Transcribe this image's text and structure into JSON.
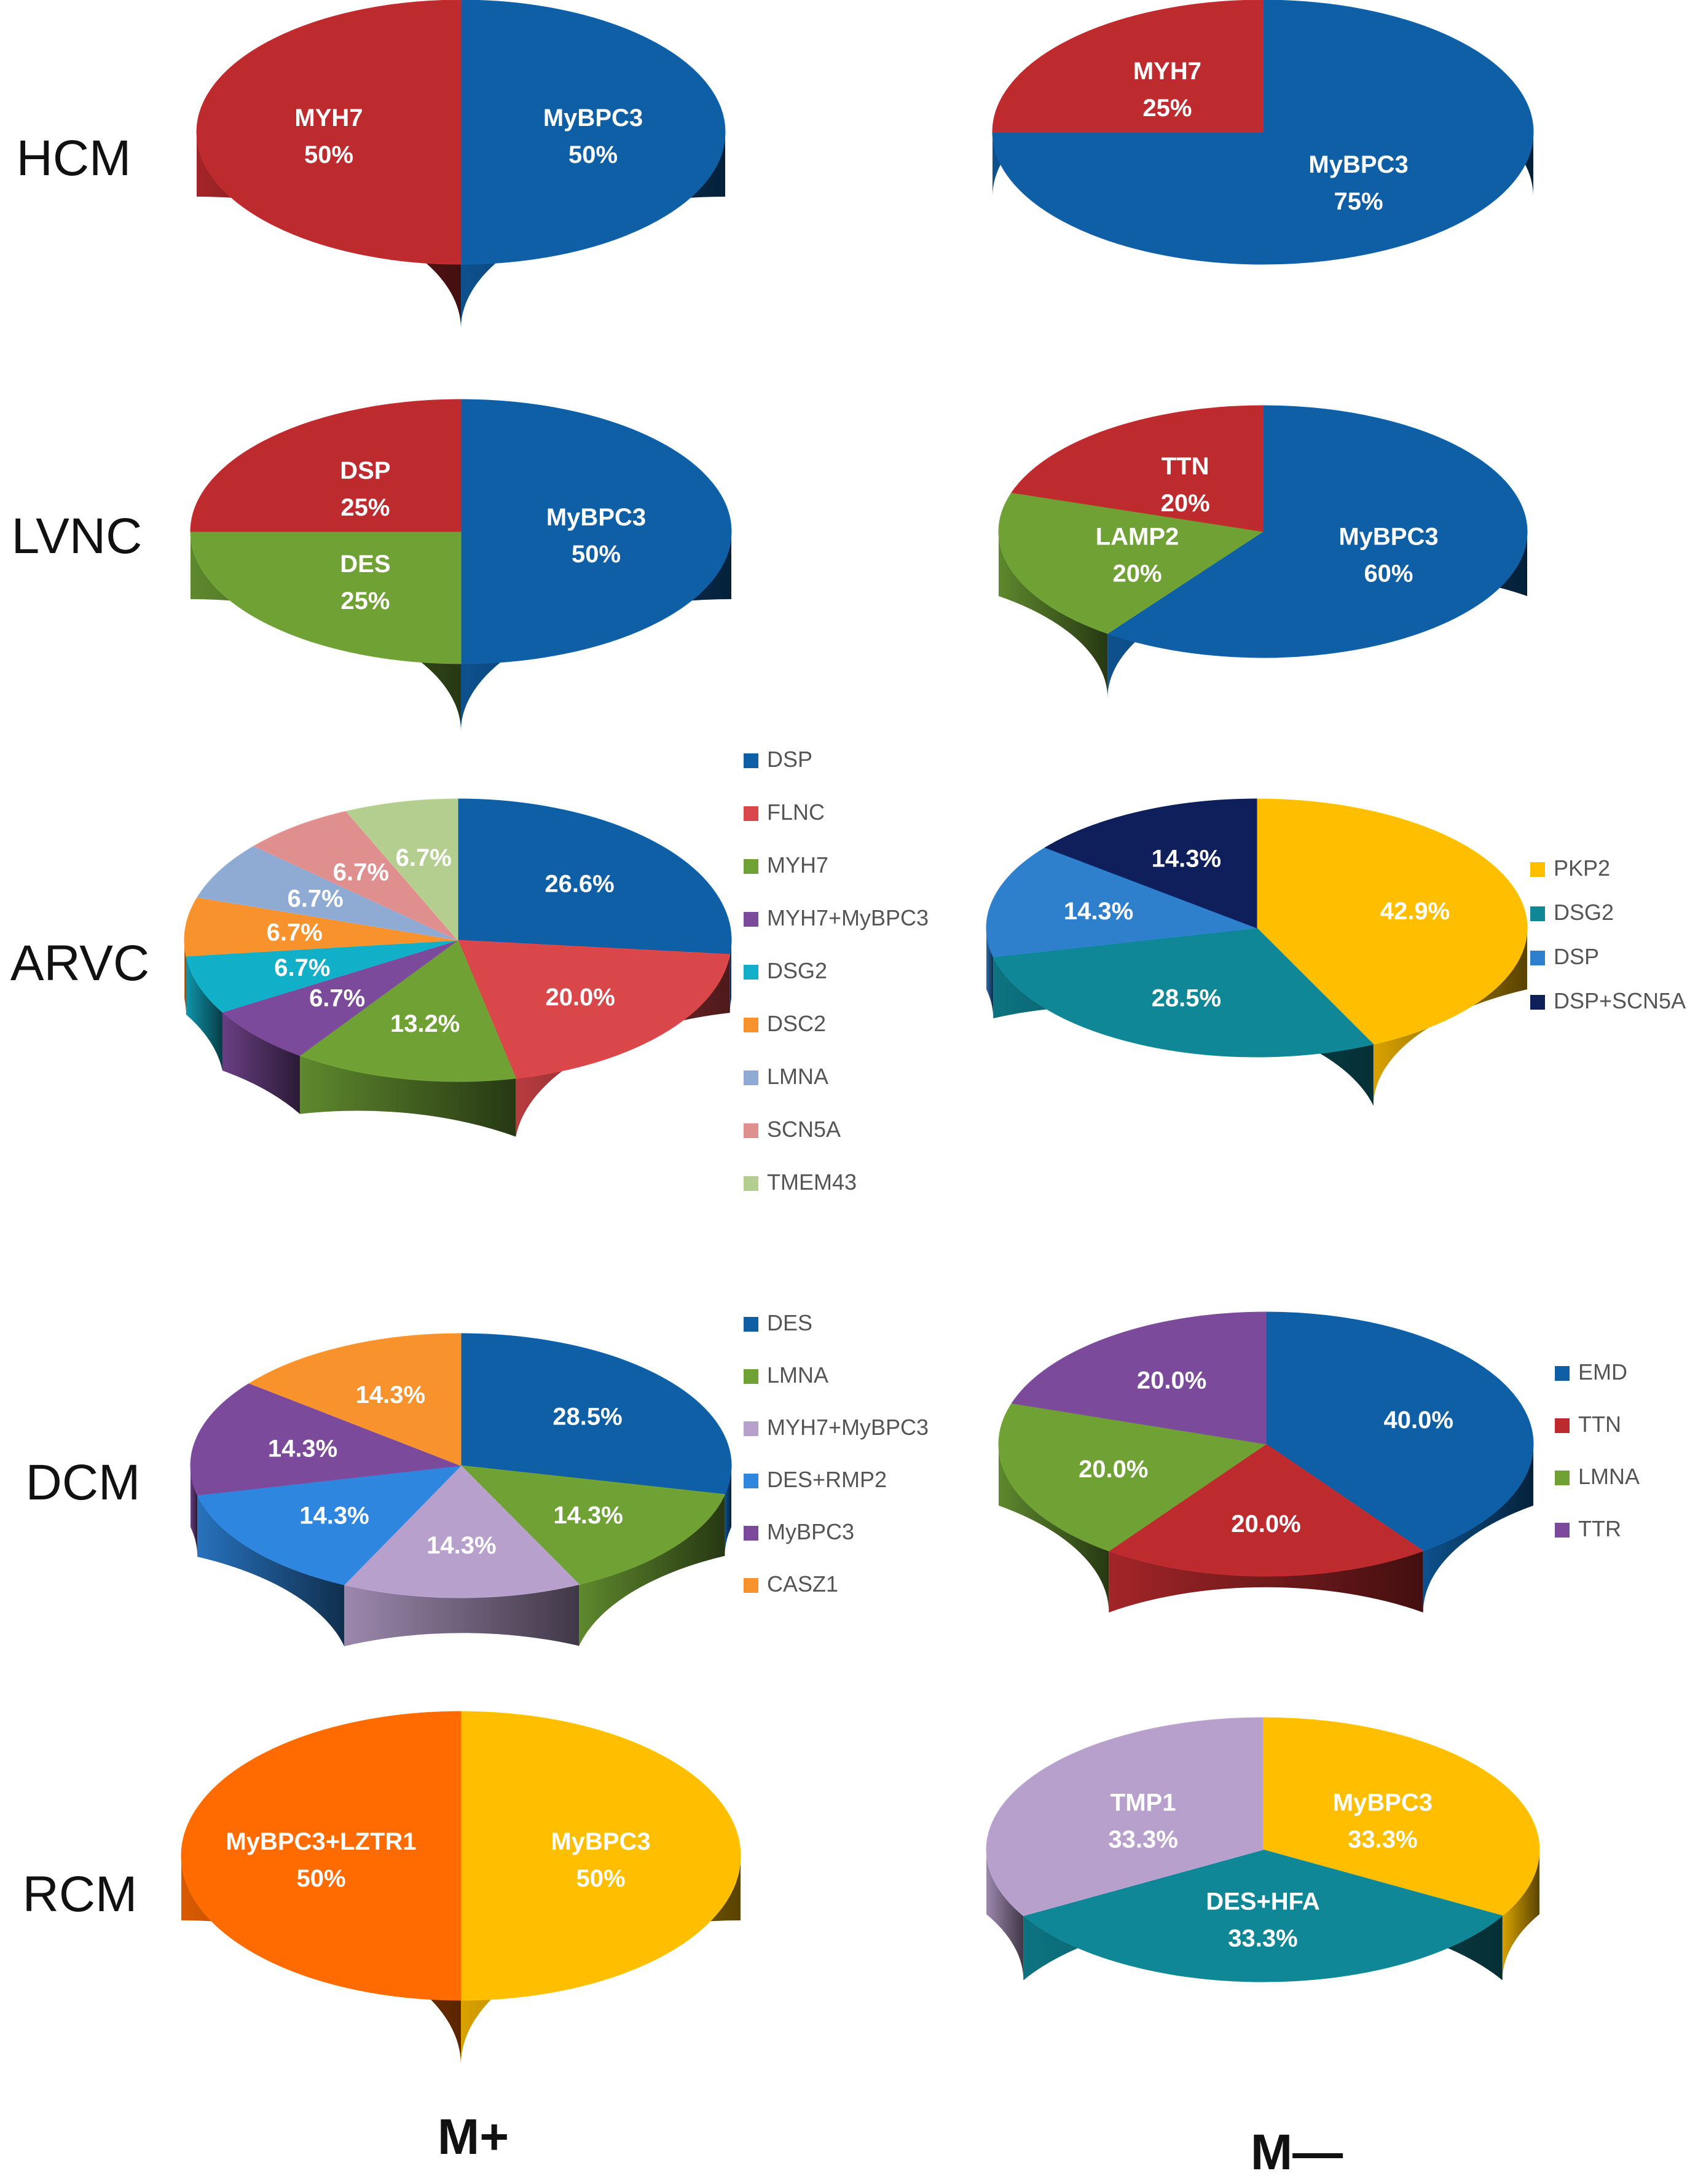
{
  "columns": [
    "M+",
    "M—"
  ],
  "chart_data": [
    {
      "type": "pie",
      "row": "HCM",
      "column": "M+",
      "label_mode": "inside_name",
      "slices": [
        {
          "label": "MyBPC3",
          "value": 50,
          "text": "50%",
          "color": "#0F5FA6"
        },
        {
          "label": "MYH7",
          "value": 50,
          "text": "50%",
          "color": "#BE2B2F"
        }
      ]
    },
    {
      "type": "pie",
      "row": "HCM",
      "column": "M—",
      "label_mode": "inside_name",
      "slices": [
        {
          "label": "MyBPC3",
          "value": 75,
          "text": "75%",
          "color": "#0F5FA6"
        },
        {
          "label": "MYH7",
          "value": 25,
          "text": "25%",
          "color": "#BE2B2F"
        }
      ]
    },
    {
      "type": "pie",
      "row": "LVNC",
      "column": "M+",
      "label_mode": "inside_name",
      "slices": [
        {
          "label": "MyBPC3",
          "value": 50,
          "text": "50%",
          "color": "#0F5FA6"
        },
        {
          "label": "DES",
          "value": 25,
          "text": "25%",
          "color": "#6FA135"
        },
        {
          "label": "DSP",
          "value": 25,
          "text": "25%",
          "color": "#BE2B2F"
        }
      ]
    },
    {
      "type": "pie",
      "row": "LVNC",
      "column": "M—",
      "label_mode": "inside_name",
      "slices": [
        {
          "label": "MyBPC3",
          "value": 60,
          "text": "60%",
          "color": "#0F5FA6"
        },
        {
          "label": "LAMP2",
          "value": 20,
          "text": "20%",
          "color": "#6FA135"
        },
        {
          "label": "TTN",
          "value": 20,
          "text": "20%",
          "color": "#BE2B2F"
        }
      ]
    },
    {
      "type": "pie",
      "row": "ARVC",
      "column": "M+",
      "label_mode": "legend",
      "slices": [
        {
          "label": "DSP",
          "value": 26.6,
          "text": "26.6%",
          "color": "#0F5FA6"
        },
        {
          "label": "FLNC",
          "value": 20.0,
          "text": "20.0%",
          "color": "#D9474A"
        },
        {
          "label": "MYH7",
          "value": 13.2,
          "text": "13.2%",
          "color": "#6FA135"
        },
        {
          "label": "MYH7+MyBPC3",
          "value": 6.7,
          "text": "6.7%",
          "color": "#7C4A9A"
        },
        {
          "label": "DSG2",
          "value": 6.7,
          "text": "6.7%",
          "color": "#12AFC9"
        },
        {
          "label": "DSC2",
          "value": 6.7,
          "text": "6.7%",
          "color": "#F7922D"
        },
        {
          "label": "LMNA",
          "value": 6.7,
          "text": "6.7%",
          "color": "#8FAAD3"
        },
        {
          "label": "SCN5A",
          "value": 6.7,
          "text": "6.7%",
          "color": "#E08F8F"
        },
        {
          "label": "TMEM43",
          "value": 6.7,
          "text": "6.7%",
          "color": "#B3CE8F"
        }
      ]
    },
    {
      "type": "pie",
      "row": "ARVC",
      "column": "M—",
      "label_mode": "legend",
      "slices": [
        {
          "label": "PKP2",
          "value": 42.9,
          "text": "42.9%",
          "color": "#FFBE00"
        },
        {
          "label": "DSG2",
          "value": 28.5,
          "text": "28.5%",
          "color": "#0F8796"
        },
        {
          "label": "DSP",
          "value": 14.3,
          "text": "14.3%",
          "color": "#2E7FCC"
        },
        {
          "label": "DSP+SCN5A",
          "value": 14.3,
          "text": "14.3%",
          "color": "#0E1F5B"
        }
      ]
    },
    {
      "type": "pie",
      "row": "DCM",
      "column": "M+",
      "label_mode": "legend",
      "slices": [
        {
          "label": "DES",
          "value": 28.5,
          "text": "28.5%",
          "color": "#0F5FA6"
        },
        {
          "label": "LMNA",
          "value": 14.3,
          "text": "14.3%",
          "color": "#6FA135"
        },
        {
          "label": "MYH7+MyBPC3",
          "value": 14.3,
          "text": "14.3%",
          "color": "#B7A0CC"
        },
        {
          "label": "DES+RMP2",
          "value": 14.3,
          "text": "14.3%",
          "color": "#2E86DE"
        },
        {
          "label": "MyBPC3",
          "value": 14.3,
          "text": "14.3%",
          "color": "#7C4A9A"
        },
        {
          "label": "CASZ1",
          "value": 14.3,
          "text": "14.3%",
          "color": "#F7922D"
        }
      ]
    },
    {
      "type": "pie",
      "row": "DCM",
      "column": "M—",
      "label_mode": "legend",
      "slices": [
        {
          "label": "EMD",
          "value": 40.0,
          "text": "40.0%",
          "color": "#0F5FA6"
        },
        {
          "label": "TTN",
          "value": 20.0,
          "text": "20.0%",
          "color": "#BE2B2F"
        },
        {
          "label": "LMNA",
          "value": 20.0,
          "text": "20.0%",
          "color": "#6FA135"
        },
        {
          "label": "TTR",
          "value": 20.0,
          "text": "20.0%",
          "color": "#7C4A9A"
        }
      ]
    },
    {
      "type": "pie",
      "row": "RCM",
      "column": "M+",
      "label_mode": "inside_name",
      "slices": [
        {
          "label": "MyBPC3",
          "value": 50,
          "text": "50%",
          "color": "#FFBE00"
        },
        {
          "label": "MyBPC3+LZTR1",
          "value": 50,
          "text": "50%",
          "color": "#FF6B00"
        }
      ]
    },
    {
      "type": "pie",
      "row": "RCM",
      "column": "M—",
      "label_mode": "inside_name",
      "slices": [
        {
          "label": "MyBPC3",
          "value": 33.3,
          "text": "33.3%",
          "color": "#FFBE00"
        },
        {
          "label": "DES+HFA",
          "value": 33.3,
          "text": "33.3%",
          "color": "#0F8796"
        },
        {
          "label": "TMP1",
          "value": 33.3,
          "text": "33.3%",
          "color": "#B7A0CC"
        }
      ]
    }
  ]
}
